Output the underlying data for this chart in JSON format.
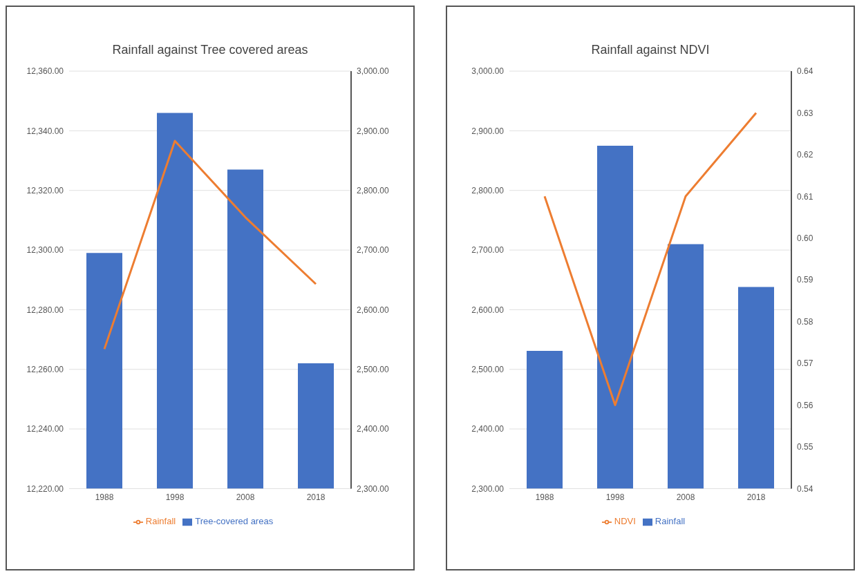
{
  "chart_data": [
    {
      "type": "bar",
      "title": "Rainfall against Tree covered areas",
      "categories": [
        "1988",
        "1998",
        "2008",
        "2018"
      ],
      "series": [
        {
          "name": "Tree-covered areas",
          "color": "#4472c4",
          "values": [
            12299,
            12346,
            12327,
            12262
          ]
        },
        {
          "name": "Rainfall",
          "type": "line",
          "axis": "y2",
          "color": "#ed7d31",
          "values": [
            2534,
            2883,
            2755,
            2643
          ]
        }
      ],
      "ylim": [
        12220,
        12360
      ],
      "yticks": [
        {
          "value": 12220,
          "label": "12,220.00"
        },
        {
          "value": 12240,
          "label": "12,240.00"
        },
        {
          "value": 12260,
          "label": "12,260.00"
        },
        {
          "value": 12280,
          "label": "12,280.00"
        },
        {
          "value": 12300,
          "label": "12,300.00"
        },
        {
          "value": 12320,
          "label": "12,320.00"
        },
        {
          "value": 12340,
          "label": "12,340.00"
        },
        {
          "value": 12360,
          "label": "12,360.00"
        }
      ],
      "y2lim": [
        2300,
        3000
      ],
      "y2ticks": [
        {
          "value": 2300,
          "label": "2,300.00"
        },
        {
          "value": 2400,
          "label": "2,400.00"
        },
        {
          "value": 2500,
          "label": "2,500.00"
        },
        {
          "value": 2600,
          "label": "2,600.00"
        },
        {
          "value": 2700,
          "label": "2,700.00"
        },
        {
          "value": 2800,
          "label": "2,800.00"
        },
        {
          "value": 2900,
          "label": "2,900.00"
        },
        {
          "value": 3000,
          "label": "3,000.00"
        }
      ],
      "grid": "y",
      "legend": "bottom",
      "marker": "none"
    },
    {
      "type": "bar",
      "title": "Rainfall against NDVI",
      "categories": [
        "1988",
        "1998",
        "2008",
        "2018"
      ],
      "series": [
        {
          "name": "Rainfall",
          "color": "#4472c4",
          "values": [
            2531,
            2875,
            2710,
            2638
          ]
        },
        {
          "name": "NDVI",
          "type": "line",
          "axis": "y2",
          "color": "#ed7d31",
          "values": [
            0.61,
            0.56,
            0.61,
            0.63
          ]
        }
      ],
      "ylim": [
        2300,
        3000
      ],
      "yticks": [
        {
          "value": 2300,
          "label": "2,300.00"
        },
        {
          "value": 2400,
          "label": "2,400.00"
        },
        {
          "value": 2500,
          "label": "2,500.00"
        },
        {
          "value": 2600,
          "label": "2,600.00"
        },
        {
          "value": 2700,
          "label": "2,700.00"
        },
        {
          "value": 2800,
          "label": "2,800.00"
        },
        {
          "value": 2900,
          "label": "2,900.00"
        },
        {
          "value": 3000,
          "label": "3,000.00"
        }
      ],
      "y2lim": [
        0.54,
        0.64
      ],
      "y2ticks": [
        0.54,
        0.55,
        0.56,
        0.57,
        0.58,
        0.59,
        {
          "value": 0.6,
          "label": "0.60"
        },
        0.61,
        0.62,
        0.63,
        0.64
      ],
      "grid": "y",
      "legend": "bottom",
      "marker": "none"
    }
  ]
}
